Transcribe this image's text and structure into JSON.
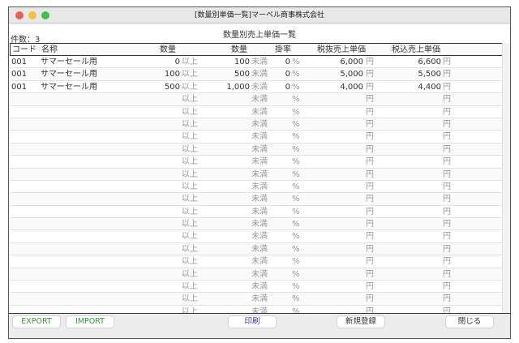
{
  "window": {
    "title": "[数量別単価一覧]マーベル商事株式会社"
  },
  "header": {
    "count_label": "件数：3",
    "heading": "数量別売上単価一覧"
  },
  "columns": [
    "コード",
    "名称",
    "数量",
    "数量",
    "掛率",
    "税抜売上単価",
    "税込売上単価"
  ],
  "units": {
    "from": "以上",
    "to": "未満",
    "rate": "%",
    "yen": "円"
  },
  "rows": [
    {
      "code": "001",
      "name": "サマーセール用",
      "from": "0",
      "to": "100",
      "rate": "0",
      "price": "6,000",
      "taxed": "6,600"
    },
    {
      "code": "001",
      "name": "サマーセール用",
      "from": "100",
      "to": "500",
      "rate": "0",
      "price": "5,000",
      "taxed": "5,500"
    },
    {
      "code": "001",
      "name": "サマーセール用",
      "from": "500",
      "to": "1,000",
      "rate": "0",
      "price": "4,000",
      "taxed": "4,400"
    },
    {},
    {},
    {},
    {},
    {},
    {},
    {},
    {},
    {},
    {},
    {},
    {},
    {},
    {},
    {},
    {},
    {},
    {},
    {}
  ],
  "buttons": {
    "export": "EXPORT",
    "import": "IMPORT",
    "print": "印刷",
    "new": "新規登録",
    "close": "閉じる"
  },
  "colors": {
    "export": "#3a9a3a",
    "import": "#3a9a3a",
    "print": "#3333aa"
  }
}
